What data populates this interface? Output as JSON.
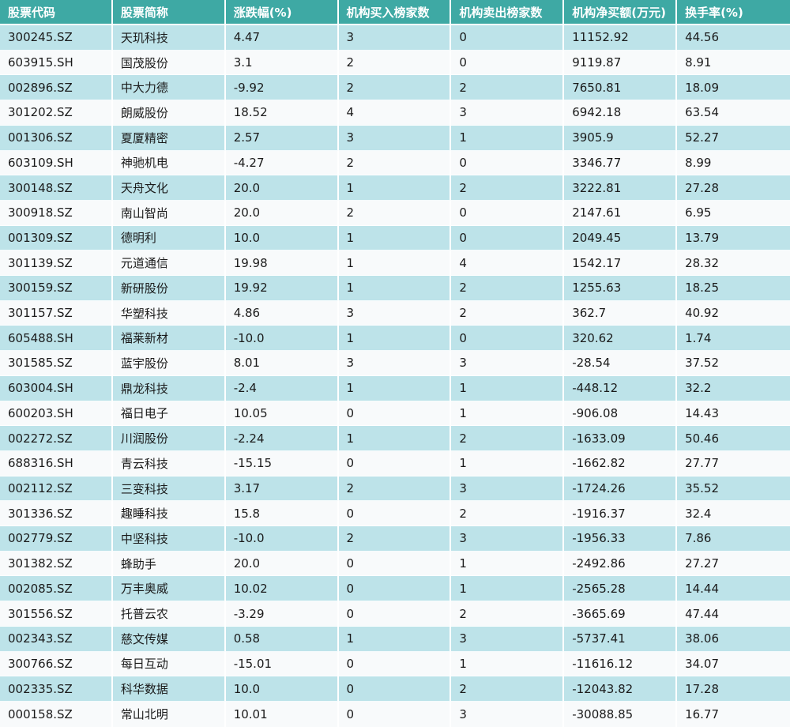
{
  "table": {
    "columns": [
      "股票代码",
      "股票简称",
      "涨跌幅(%)",
      "机构买入榜家数",
      "机构卖出榜家数",
      "机构净买额(万元)",
      "换手率(%)"
    ],
    "rows": [
      [
        "300245.SZ",
        "天玑科技",
        "4.47",
        "3",
        "0",
        "11152.92",
        "44.56"
      ],
      [
        "603915.SH",
        "国茂股份",
        "3.1",
        "2",
        "0",
        "9119.87",
        "8.91"
      ],
      [
        "002896.SZ",
        "中大力德",
        "-9.92",
        "2",
        "2",
        "7650.81",
        "18.09"
      ],
      [
        "301202.SZ",
        "朗威股份",
        "18.52",
        "4",
        "3",
        "6942.18",
        "63.54"
      ],
      [
        "001306.SZ",
        "夏厦精密",
        "2.57",
        "3",
        "1",
        "3905.9",
        "52.27"
      ],
      [
        "603109.SH",
        "神驰机电",
        "-4.27",
        "2",
        "0",
        "3346.77",
        "8.99"
      ],
      [
        "300148.SZ",
        "天舟文化",
        "20.0",
        "1",
        "2",
        "3222.81",
        "27.28"
      ],
      [
        "300918.SZ",
        "南山智尚",
        "20.0",
        "2",
        "0",
        "2147.61",
        "6.95"
      ],
      [
        "001309.SZ",
        "德明利",
        "10.0",
        "1",
        "0",
        "2049.45",
        "13.79"
      ],
      [
        "301139.SZ",
        "元道通信",
        "19.98",
        "1",
        "4",
        "1542.17",
        "28.32"
      ],
      [
        "300159.SZ",
        "新研股份",
        "19.92",
        "1",
        "2",
        "1255.63",
        "18.25"
      ],
      [
        "301157.SZ",
        "华塑科技",
        "4.86",
        "3",
        "2",
        "362.7",
        "40.92"
      ],
      [
        "605488.SH",
        "福莱新材",
        "-10.0",
        "1",
        "0",
        "320.62",
        "1.74"
      ],
      [
        "301585.SZ",
        "蓝宇股份",
        "8.01",
        "3",
        "3",
        "-28.54",
        "37.52"
      ],
      [
        "603004.SH",
        "鼎龙科技",
        "-2.4",
        "1",
        "1",
        "-448.12",
        "32.2"
      ],
      [
        "600203.SH",
        "福日电子",
        "10.05",
        "0",
        "1",
        "-906.08",
        "14.43"
      ],
      [
        "002272.SZ",
        "川润股份",
        "-2.24",
        "1",
        "2",
        "-1633.09",
        "50.46"
      ],
      [
        "688316.SH",
        "青云科技",
        "-15.15",
        "0",
        "1",
        "-1662.82",
        "27.77"
      ],
      [
        "002112.SZ",
        "三变科技",
        "3.17",
        "2",
        "3",
        "-1724.26",
        "35.52"
      ],
      [
        "301336.SZ",
        "趣睡科技",
        "15.8",
        "0",
        "2",
        "-1916.37",
        "32.4"
      ],
      [
        "002779.SZ",
        "中坚科技",
        "-10.0",
        "2",
        "3",
        "-1956.33",
        "7.86"
      ],
      [
        "301382.SZ",
        "蜂助手",
        "20.0",
        "0",
        "1",
        "-2492.86",
        "27.27"
      ],
      [
        "002085.SZ",
        "万丰奥威",
        "10.02",
        "0",
        "1",
        "-2565.28",
        "14.44"
      ],
      [
        "301556.SZ",
        "托普云农",
        "-3.29",
        "0",
        "2",
        "-3665.69",
        "47.44"
      ],
      [
        "002343.SZ",
        "慈文传媒",
        "0.58",
        "1",
        "3",
        "-5737.41",
        "38.06"
      ],
      [
        "300766.SZ",
        "每日互动",
        "-15.01",
        "0",
        "1",
        "-11616.12",
        "34.07"
      ],
      [
        "002335.SZ",
        "科华数据",
        "10.0",
        "0",
        "2",
        "-12043.82",
        "17.28"
      ],
      [
        "000158.SZ",
        "常山北明",
        "10.01",
        "0",
        "3",
        "-30088.85",
        "16.77"
      ]
    ]
  },
  "colors": {
    "header_bg": "#3EA9A4",
    "header_text": "#FFFFFF",
    "row_alt_bg": "#BDE3E9",
    "row_bg": "#F8FAFB",
    "cell_text": "#1A1A1A",
    "divider": "#FFFFFF"
  }
}
